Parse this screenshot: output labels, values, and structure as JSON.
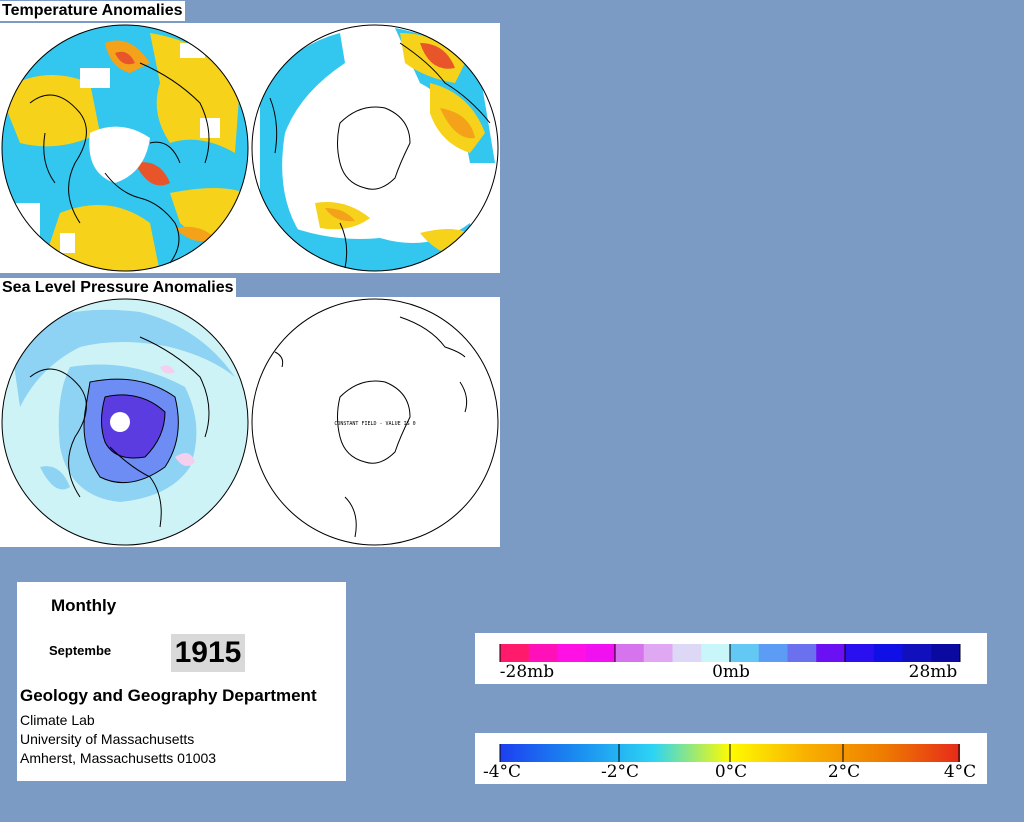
{
  "temperature": {
    "title": "Temperature Anomalies",
    "colors": {
      "neutral": "#ffffff",
      "cold": "#33c6ee",
      "coldmid": "#1aa2ee",
      "warm": "#f6d21a",
      "warmer": "#f3a21a",
      "hot": "#e8552a"
    }
  },
  "pressure": {
    "title": "Sea Level Pressure Anomalies",
    "south_note": "CONSTANT FIELD - VALUE IS 0",
    "colors": {
      "light": "#cdf3f6",
      "mid": "#8ed3f3",
      "dark": "#6d8cf4",
      "deep": "#5b3ce0",
      "positive": "#f5cfee"
    }
  },
  "info": {
    "period": "Monthly",
    "month": "Septembe",
    "year": "1915",
    "department": "Geology and Geography Department",
    "lines": [
      "Climate Lab",
      "University of Massachusetts",
      "Amherst, Massachusetts 01003"
    ]
  },
  "pressure_legend": {
    "labels": [
      "-28mb",
      "0mb",
      "28mb"
    ],
    "colors": [
      "#ff1a6b",
      "#ff10b8",
      "#ff10e4",
      "#f010f0",
      "#d674ee",
      "#e0a7f2",
      "#ddd8f5",
      "#c9f6f9",
      "#63c8f3",
      "#5c9cf5",
      "#6b70ef",
      "#6b10f2",
      "#2a10f0",
      "#1010e6",
      "#1010bd",
      "#0a0aa0"
    ]
  },
  "temperature_legend": {
    "labels": [
      "-4°C",
      "-2°C",
      "0°C",
      "2°C",
      "4°C"
    ],
    "stops": [
      "#1d3ff0",
      "#1a8cf0",
      "#2dd4f4",
      "#fffb00",
      "#f9b000",
      "#ee7c00",
      "#e62a1a"
    ]
  },
  "icons": [
    "polar-globe-icon",
    "antarctica-outline-icon"
  ]
}
